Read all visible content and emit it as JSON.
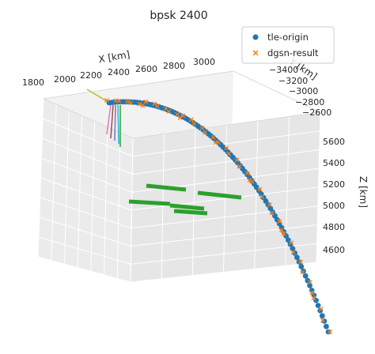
{
  "chart_data": {
    "type": "scatter",
    "projection": "3d",
    "title": "bpsk 2400",
    "xlabel": "X [km]",
    "ylabel": "Y [km]",
    "zlabel": "Z [km]",
    "x_ticks": [
      "1800",
      "2000",
      "2200",
      "2400",
      "2600",
      "2800",
      "3000"
    ],
    "y_ticks": [
      "−3400",
      "−3200",
      "−3000",
      "−2800",
      "−2600"
    ],
    "z_ticks": [
      "5600",
      "5400",
      "5200",
      "5000",
      "4800",
      "4600"
    ],
    "xlim": [
      1800,
      3100
    ],
    "ylim": [
      -3400,
      -2600
    ],
    "zlim": [
      4500,
      5750
    ],
    "grid": true,
    "legend_position": "top-right",
    "series": [
      {
        "name": "tle-origin",
        "marker": "circle",
        "color": "#1f77b4",
        "description_points": "continuous trajectory arc from near (x≈2350, y≈-3300, z≈5700) down to (x≈3050, y≈-2650, z≈4500)"
      },
      {
        "name": "dgsn-result",
        "marker": "x",
        "color": "#ff7f0e"
      }
    ],
    "extra_lines": {
      "colors": [
        "#bcbd22",
        "#e377c2",
        "#8c564b",
        "#9467bd",
        "#17becf",
        "#2ca02c"
      ]
    }
  }
}
